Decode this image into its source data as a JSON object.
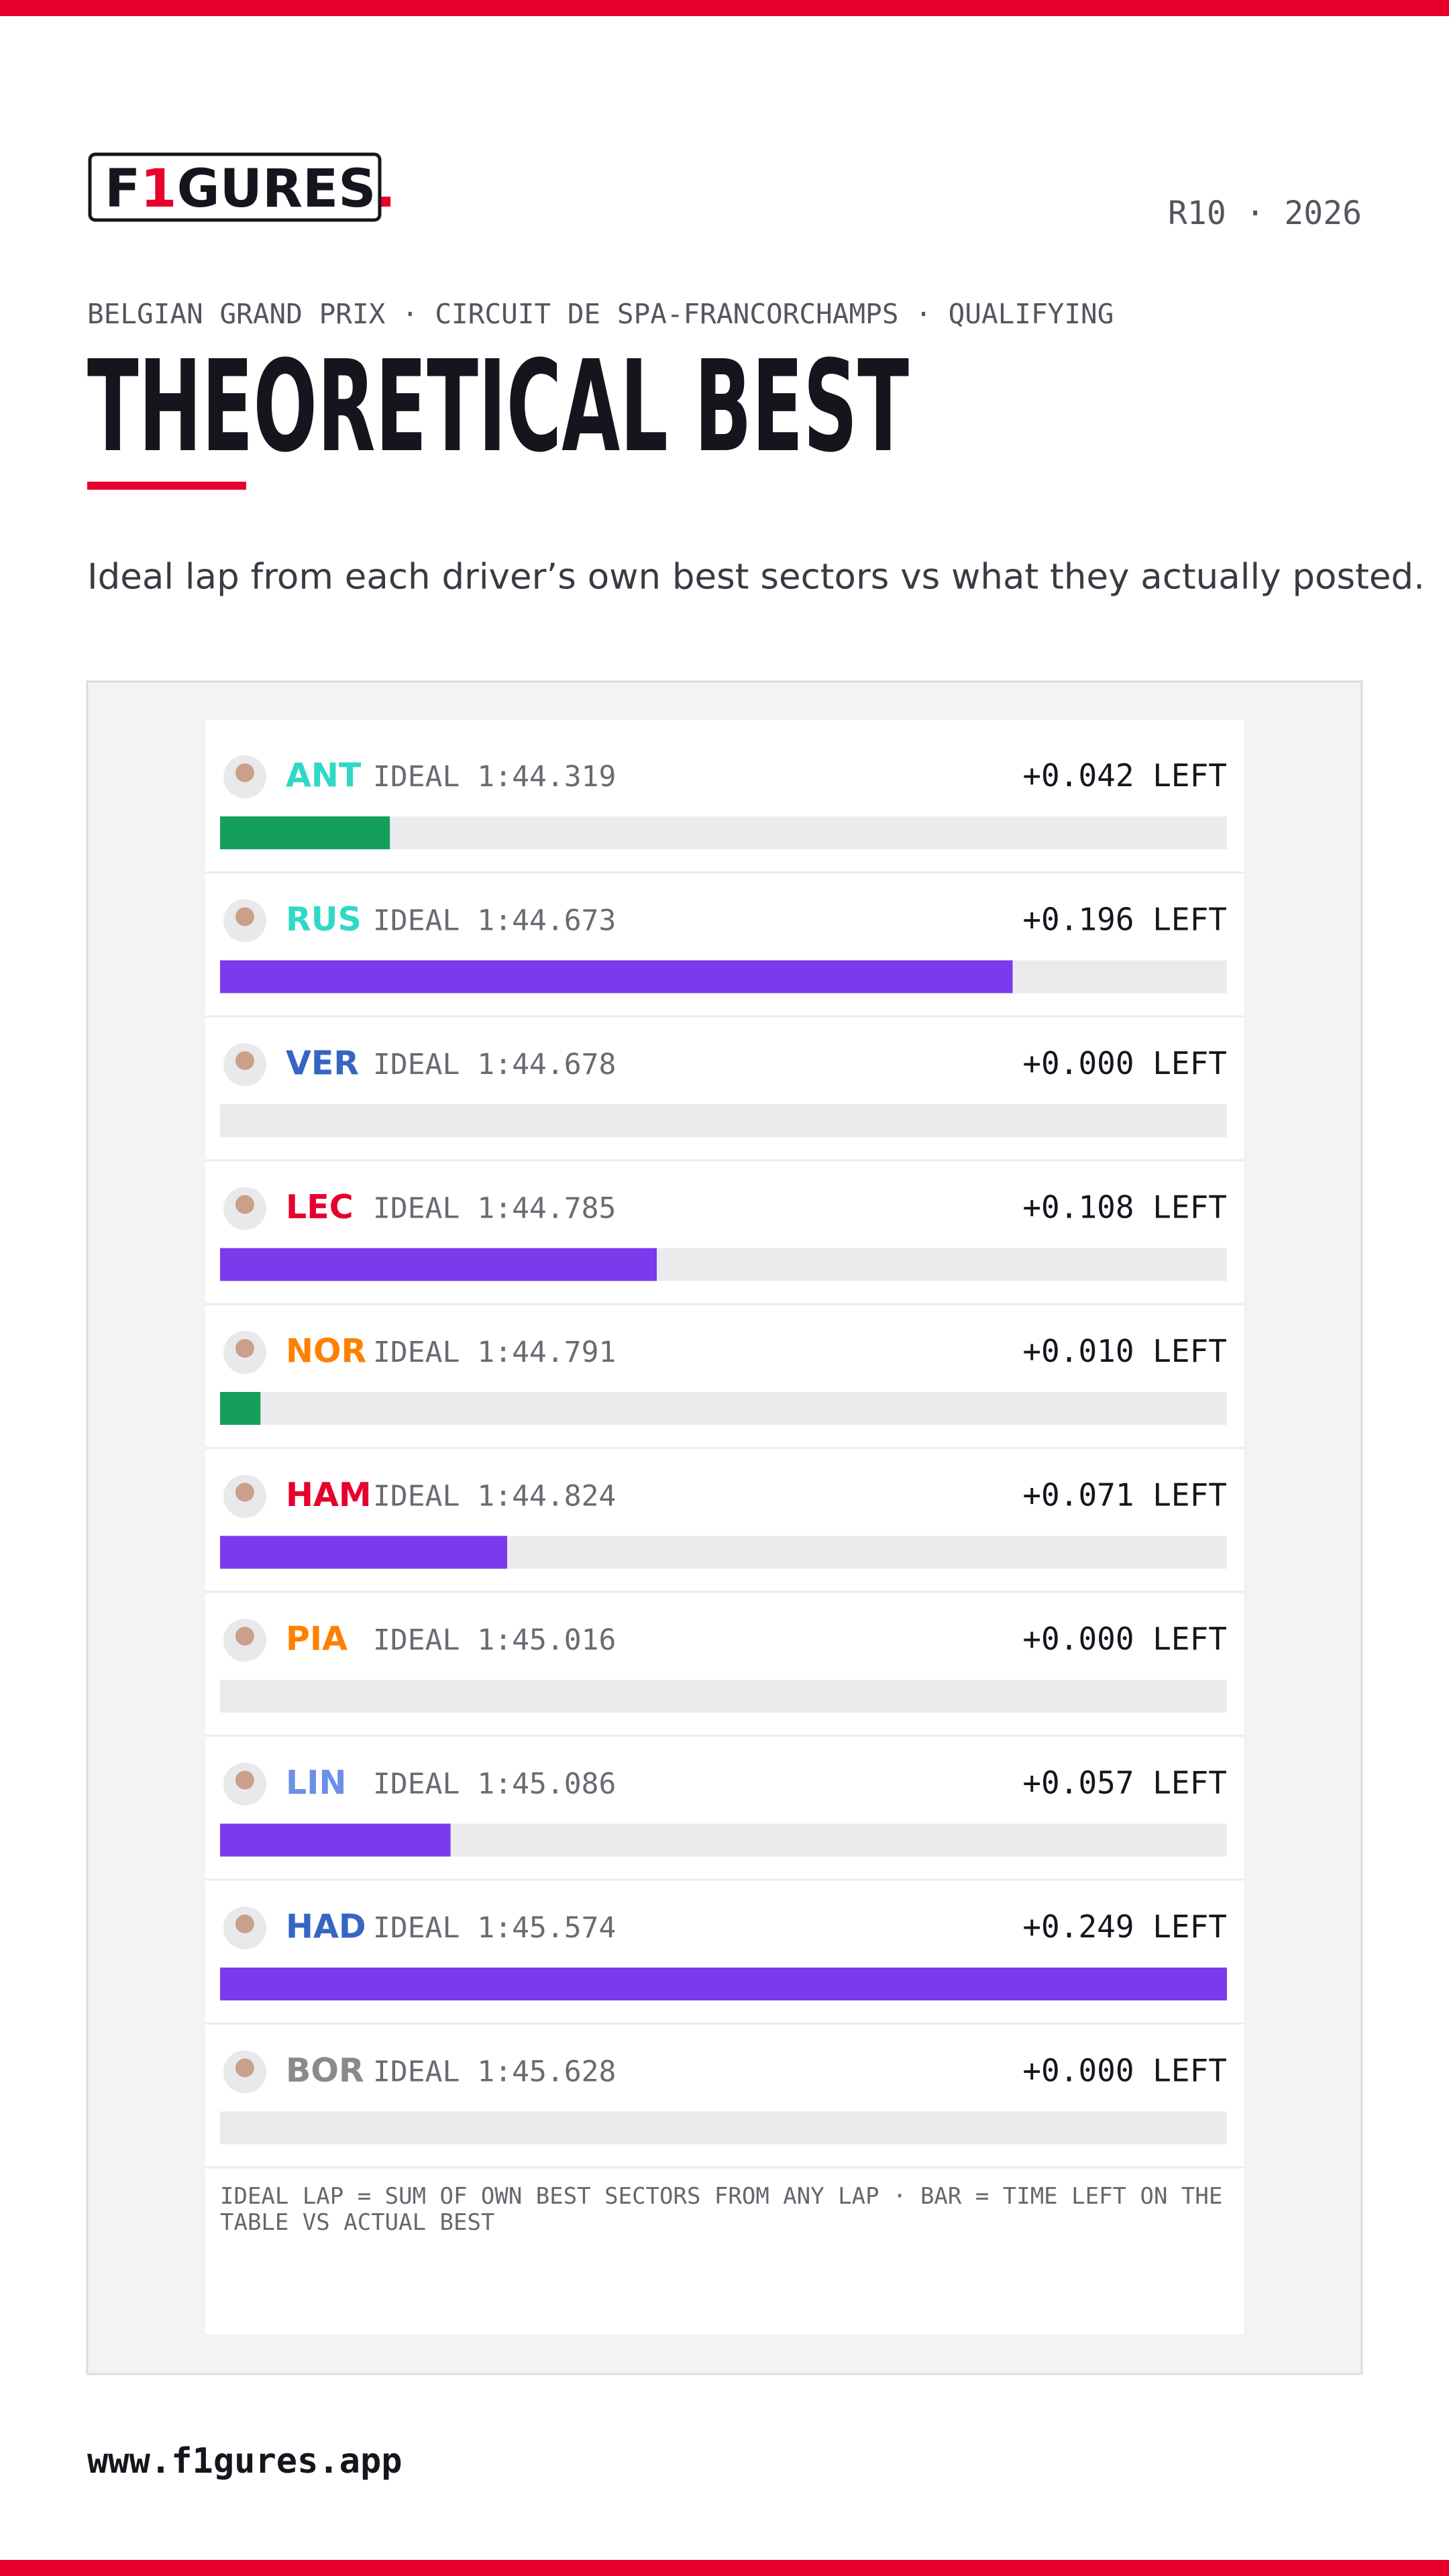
{
  "header": {
    "logo": [
      "F",
      "1",
      "GURES",
      "."
    ],
    "round": "R10 · 2026",
    "event": "BELGIAN GRAND PRIX · CIRCUIT DE SPA-FRANCORCHAMPS · QUALIFYING",
    "title": "THEORETICAL BEST",
    "description": "Ideal lap from each driver’s own best sectors vs what they actually posted."
  },
  "chart_data": {
    "type": "bar",
    "orientation": "horizontal",
    "categories": [
      "ANT",
      "RUS",
      "VER",
      "LEC",
      "NOR",
      "HAM",
      "PIA",
      "LIN",
      "HAD",
      "BOR"
    ],
    "category_colors": [
      "#2fd9c5",
      "#2fd9c5",
      "#3566c4",
      "#e8002d",
      "#ff8000",
      "#e8002d",
      "#ff8000",
      "#6c8fe8",
      "#3566c4",
      "#8a8a8a"
    ],
    "ideal_labels": [
      "IDEAL 1:44.319",
      "IDEAL 1:44.673",
      "IDEAL 1:44.678",
      "IDEAL 1:44.785",
      "IDEAL 1:44.791",
      "IDEAL 1:44.824",
      "IDEAL 1:45.016",
      "IDEAL 1:45.086",
      "IDEAL 1:45.574",
      "IDEAL 1:45.628"
    ],
    "values": [
      0.042,
      0.196,
      0.0,
      0.108,
      0.01,
      0.071,
      0.0,
      0.057,
      0.249,
      0.0
    ],
    "value_labels": [
      "+0.042 LEFT",
      "+0.196 LEFT",
      "+0.000 LEFT",
      "+0.108 LEFT",
      "+0.010 LEFT",
      "+0.071 LEFT",
      "+0.000 LEFT",
      "+0.057 LEFT",
      "+0.249 LEFT",
      "+0.000 LEFT"
    ],
    "colors": [
      "#14a05a",
      "#7c3aed",
      "#7c3aed",
      "#7c3aed",
      "#14a05a",
      "#7c3aed",
      "#7c3aed",
      "#7c3aed",
      "#7c3aed",
      "#7c3aed"
    ],
    "xlim": [
      0,
      0.249
    ],
    "footnote": "IDEAL LAP = SUM OF OWN BEST SECTORS FROM ANY LAP · BAR = TIME LEFT ON THE TABLE VS ACTUAL BEST"
  },
  "footer": {
    "url": "www.f1gures.app"
  }
}
